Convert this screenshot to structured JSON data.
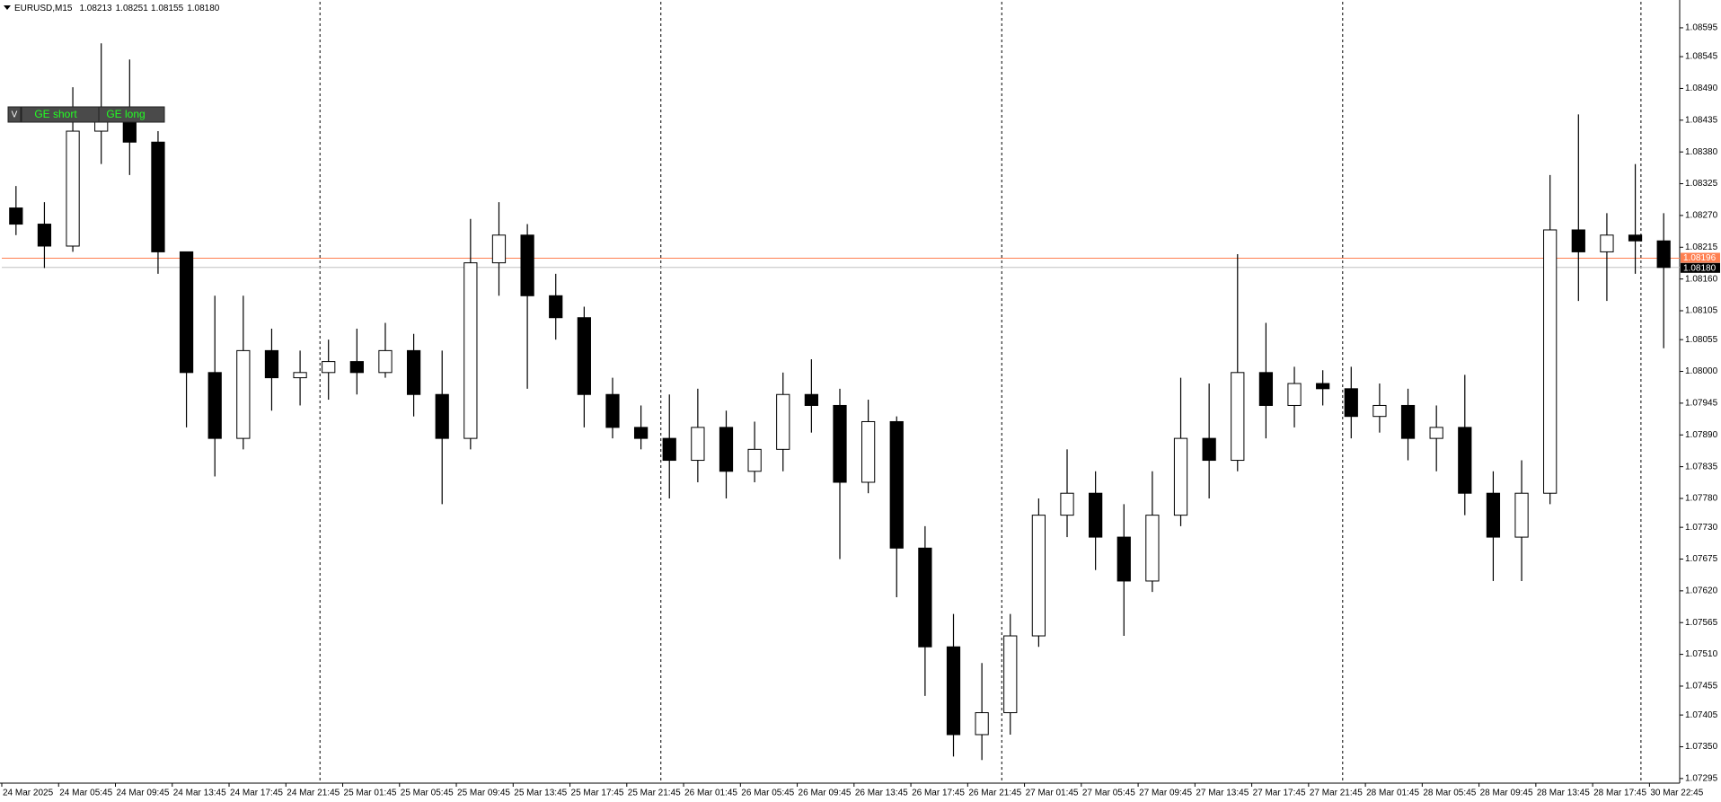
{
  "chart_data": {
    "type": "candlestick",
    "title": "EURUSD,M15",
    "header_prices": [
      "1.08213",
      "1.08251",
      "1.08155",
      "1.08180"
    ],
    "buttons": [
      "V",
      "GE short",
      "GE long"
    ],
    "open": [
      1.08283,
      1.08255,
      1.08217,
      1.08416,
      1.08435,
      1.08397,
      1.08207,
      1.07998,
      1.07884,
      1.08036,
      1.07989,
      1.07998,
      1.08017,
      1.07998,
      1.08036,
      1.0796,
      1.07884,
      1.08188,
      1.08236,
      1.08131,
      1.08093,
      1.0796,
      1.07903,
      1.07884,
      1.07846,
      1.07903,
      1.07827,
      1.07865,
      1.0796,
      1.07941,
      1.07808,
      1.07913,
      1.07694,
      1.07523,
      1.07371,
      1.07409,
      1.07542,
      1.07751,
      1.07789,
      1.07713,
      1.07637,
      1.07751,
      1.07884,
      1.07846,
      1.07998,
      1.07941,
      1.07979,
      1.0797,
      1.07922,
      1.07941,
      1.07884,
      1.07903,
      1.07789,
      1.07713,
      1.07789,
      1.08245,
      1.08207,
      1.08236,
      1.08226
    ],
    "high": [
      1.08321,
      1.08293,
      1.08492,
      1.08568,
      1.0854,
      1.08416,
      1.08207,
      1.08131,
      1.08131,
      1.08074,
      1.08036,
      1.08055,
      1.08074,
      1.08084,
      1.08065,
      1.08036,
      1.08264,
      1.08293,
      1.08255,
      1.08169,
      1.08112,
      1.07989,
      1.07941,
      1.0796,
      1.0797,
      1.07932,
      1.07913,
      1.07998,
      1.08021,
      1.0797,
      1.07951,
      1.07922,
      1.07732,
      1.0758,
      1.07495,
      1.0758,
      1.0778,
      1.07865,
      1.07827,
      1.0777,
      1.07827,
      1.07989,
      1.07979,
      1.08203,
      1.08084,
      1.08008,
      1.08002,
      1.08008,
      1.07979,
      1.0797,
      1.07941,
      1.07994,
      1.07827,
      1.07846,
      1.0834,
      1.08445,
      1.08274,
      1.08359,
      1.08274
    ],
    "low": [
      1.08236,
      1.08179,
      1.08207,
      1.08359,
      1.0834,
      1.08169,
      1.07903,
      1.07818,
      1.07865,
      1.07932,
      1.07941,
      1.07951,
      1.0796,
      1.07989,
      1.07922,
      1.0777,
      1.07865,
      1.08131,
      1.0797,
      1.08055,
      1.07903,
      1.07884,
      1.07865,
      1.0778,
      1.07808,
      1.0778,
      1.07808,
      1.07827,
      1.07894,
      1.07675,
      1.07789,
      1.07609,
      1.07438,
      1.07333,
      1.07327,
      1.07371,
      1.07523,
      1.07713,
      1.07656,
      1.07542,
      1.07618,
      1.07732,
      1.0778,
      1.07827,
      1.07884,
      1.07903,
      1.07941,
      1.07884,
      1.07894,
      1.07846,
      1.07827,
      1.07751,
      1.07637,
      1.07637,
      1.0777,
      1.08122,
      1.08122,
      1.08169,
      1.0804
    ],
    "close": [
      1.08255,
      1.08217,
      1.08416,
      1.08435,
      1.08397,
      1.08207,
      1.07998,
      1.07884,
      1.08036,
      1.07989,
      1.07998,
      1.08017,
      1.07998,
      1.08036,
      1.0796,
      1.07884,
      1.08188,
      1.08236,
      1.08131,
      1.08093,
      1.0796,
      1.07903,
      1.07884,
      1.07846,
      1.07903,
      1.07827,
      1.07865,
      1.0796,
      1.07941,
      1.07808,
      1.07913,
      1.07694,
      1.07523,
      1.07371,
      1.07409,
      1.07542,
      1.07751,
      1.07789,
      1.07713,
      1.07637,
      1.07751,
      1.07884,
      1.07846,
      1.07998,
      1.07941,
      1.07979,
      1.0797,
      1.07922,
      1.07941,
      1.07884,
      1.07903,
      1.07789,
      1.07713,
      1.07789,
      1.08245,
      1.08207,
      1.08236,
      1.08226,
      1.0818
    ],
    "xlim": [
      0,
      59
    ],
    "xticks": [
      {
        "value": 0,
        "label": "24 Mar 2025"
      },
      {
        "value": 2,
        "label": "24 Mar 05:45"
      },
      {
        "value": 4,
        "label": "24 Mar 09:45"
      },
      {
        "value": 6,
        "label": "24 Mar 13:45"
      },
      {
        "value": 8,
        "label": "24 Mar 17:45"
      },
      {
        "value": 10,
        "label": "24 Mar 21:45"
      },
      {
        "value": 12,
        "label": "25 Mar 01:45"
      },
      {
        "value": 14,
        "label": "25 Mar 05:45"
      },
      {
        "value": 16,
        "label": "25 Mar 09:45"
      },
      {
        "value": 18,
        "label": "25 Mar 13:45"
      },
      {
        "value": 20,
        "label": "25 Mar 17:45"
      },
      {
        "value": 22,
        "label": "25 Mar 21:45"
      },
      {
        "value": 24,
        "label": "26 Mar 01:45"
      },
      {
        "value": 26,
        "label": "26 Mar 05:45"
      },
      {
        "value": 28,
        "label": "26 Mar 09:45"
      },
      {
        "value": 30,
        "label": "26 Mar 13:45"
      },
      {
        "value": 32,
        "label": "26 Mar 17:45"
      },
      {
        "value": 34,
        "label": "26 Mar 21:45"
      },
      {
        "value": 36,
        "label": "27 Mar 01:45"
      },
      {
        "value": 38,
        "label": "27 Mar 05:45"
      },
      {
        "value": 40,
        "label": "27 Mar 09:45"
      },
      {
        "value": 42,
        "label": "27 Mar 13:45"
      },
      {
        "value": 44,
        "label": "27 Mar 17:45"
      },
      {
        "value": 46,
        "label": "27 Mar 21:45"
      },
      {
        "value": 48,
        "label": "28 Mar 01:45"
      },
      {
        "value": 50,
        "label": "28 Mar 05:45"
      },
      {
        "value": 52,
        "label": "28 Mar 09:45"
      },
      {
        "value": 54,
        "label": "28 Mar 13:45"
      },
      {
        "value": 56,
        "label": "28 Mar 17:45"
      },
      {
        "value": 58,
        "label": "30 Mar 22:45"
      }
    ],
    "separators": [
      11.2,
      23.2,
      35.2,
      47.2,
      57.7
    ],
    "ylim": [
      1.07287,
      1.0864
    ],
    "yticks": [
      1.08595,
      1.08545,
      {
        "value": 1.0849,
        "label": "1.08490"
      },
      1.08435,
      {
        "value": 1.0838,
        "label": "1.08380"
      },
      1.08325,
      {
        "value": 1.0827,
        "label": "1.08270"
      },
      1.08215,
      {
        "value": 1.0816,
        "label": "1.08160"
      },
      1.08105,
      1.08055,
      {
        "value": 1.08,
        "label": "1.08000"
      },
      1.07945,
      {
        "value": 1.0789,
        "label": "1.07890"
      },
      1.07835,
      {
        "value": 1.0778,
        "label": "1.07780"
      },
      {
        "value": 1.0773,
        "label": "1.07730"
      },
      1.07675,
      {
        "value": 1.0762,
        "label": "1.07620"
      },
      1.07565,
      {
        "value": 1.0751,
        "label": "1.07510"
      },
      1.07455,
      1.07405,
      {
        "value": 1.0735,
        "label": "1.07350"
      },
      1.07295
    ],
    "ask_line": {
      "value": 1.08196,
      "color": "#ff7f50"
    },
    "bid_line": {
      "value": 1.0818,
      "label": "1.08180",
      "color": "#c0c0c0"
    },
    "up_color": "#ffffff",
    "down_color": "#000000",
    "grid": false
  }
}
